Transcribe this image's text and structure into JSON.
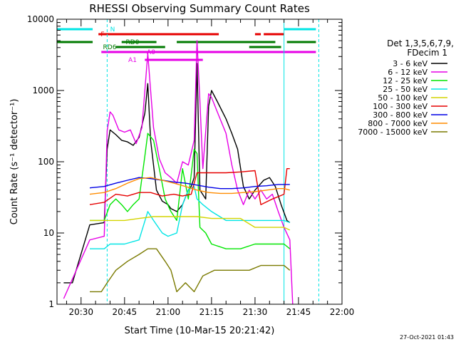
{
  "chart_data": {
    "type": "line",
    "title": "RHESSI Observing Summary Count Rates",
    "xlabel": "Start Time (10-Mar-15 20:21:42)",
    "ylabel": "Count Rate (s⁻¹ detector⁻¹)",
    "y_scale": "log",
    "ylim": [
      1,
      10000
    ],
    "xlim": [
      "20:21:42",
      "22:00:00"
    ],
    "x_ticks": [
      "20:30",
      "20:45",
      "21:00",
      "21:15",
      "21:30",
      "21:45",
      "22:00"
    ],
    "y_ticks": [
      "1",
      "10",
      "100",
      "1000",
      "10000"
    ],
    "footer_date": "27-Oct-2021 01:43",
    "legend": {
      "title_line1": "Det 1,3,5,6,7,9,",
      "title_line2": "FDecim 1",
      "placement": "right"
    },
    "flag_labels": {
      "N": "N",
      "F": "F",
      "RD0": "RD0",
      "RD6": "RD6",
      "A0": "A0",
      "A1": "A1"
    },
    "flag_colors": {
      "N": "#00e5e5",
      "F": "#e60000",
      "RD": "#007a00",
      "A": "#e600e6"
    },
    "flags": {
      "N": [
        [
          "20:21:42",
          "20:34:00"
        ],
        [
          "21:40:00",
          "21:51:00"
        ]
      ],
      "F": [
        [
          "20:36:00",
          "21:17:30"
        ],
        [
          "21:30:00",
          "21:32:00"
        ],
        [
          "21:33:00",
          "21:40:00"
        ]
      ],
      "RD0": [
        [
          "20:21:42",
          "20:34:00"
        ],
        [
          "20:44:00",
          "20:56:00"
        ],
        [
          "21:03:00",
          "21:37:00"
        ],
        [
          "21:41:00",
          "21:51:00"
        ]
      ],
      "RD6": [
        [
          "20:42:00",
          "20:59:00"
        ],
        [
          "21:28:00",
          "21:39:00"
        ]
      ],
      "A0": [
        [
          "20:37:00",
          "21:51:00"
        ]
      ],
      "A1": [
        [
          "20:52:00",
          "21:12:00"
        ]
      ]
    },
    "vlines_solid": [
      "20:21:42",
      "21:40:00"
    ],
    "vlines_dashed": [
      "20:39:00",
      "21:52:00"
    ],
    "series": [
      {
        "name": "3 - 6 keV",
        "color": "#000000",
        "points": [
          [
            "20:24:00",
            2
          ],
          [
            "20:27:00",
            2
          ],
          [
            "20:33:00",
            13
          ],
          [
            "20:38:00",
            14
          ],
          [
            "20:39:00",
            150
          ],
          [
            "20:40:00",
            280
          ],
          [
            "20:42:00",
            240
          ],
          [
            "20:44:00",
            200
          ],
          [
            "20:46:00",
            190
          ],
          [
            "20:48:00",
            170
          ],
          [
            "20:50:00",
            220
          ],
          [
            "20:52:00",
            480
          ],
          [
            "20:53:00",
            1250
          ],
          [
            "20:54:00",
            200
          ],
          [
            "20:56:00",
            40
          ],
          [
            "20:58:00",
            28
          ],
          [
            "21:00:00",
            25
          ],
          [
            "21:01:00",
            22
          ],
          [
            "21:03:00",
            20
          ],
          [
            "21:05:00",
            25
          ],
          [
            "21:07:00",
            40
          ],
          [
            "21:08:00",
            45
          ],
          [
            "21:09:00",
            60
          ],
          [
            "21:10:00",
            2400
          ],
          [
            "21:11:00",
            40
          ],
          [
            "21:13:00",
            30
          ],
          [
            "21:14:00",
            600
          ],
          [
            "21:15:00",
            1000
          ],
          [
            "21:17:00",
            700
          ],
          [
            "21:20:00",
            400
          ],
          [
            "21:22:00",
            250
          ],
          [
            "21:24:00",
            150
          ],
          [
            "21:26:00",
            45
          ],
          [
            "21:28:00",
            30
          ],
          [
            "21:30:00",
            40
          ],
          [
            "21:33:00",
            55
          ],
          [
            "21:35:00",
            60
          ],
          [
            "21:37:00",
            45
          ],
          [
            "21:39:00",
            25
          ],
          [
            "21:41:00",
            15
          ],
          [
            "21:42:00",
            14
          ]
        ]
      },
      {
        "name": "6 - 12 keV",
        "color": "#e600e6",
        "points": [
          [
            "20:24:00",
            1.2
          ],
          [
            "20:33:00",
            8
          ],
          [
            "20:38:00",
            9
          ],
          [
            "20:39:00",
            270
          ],
          [
            "20:40:00",
            500
          ],
          [
            "20:41:00",
            450
          ],
          [
            "20:43:00",
            280
          ],
          [
            "20:45:00",
            260
          ],
          [
            "20:47:00",
            280
          ],
          [
            "20:49:00",
            180
          ],
          [
            "20:51:00",
            300
          ],
          [
            "20:52:00",
            1000
          ],
          [
            "20:53:00",
            3300
          ],
          [
            "20:54:00",
            1000
          ],
          [
            "20:55:00",
            300
          ],
          [
            "20:57:00",
            110
          ],
          [
            "20:59:00",
            70
          ],
          [
            "21:01:00",
            60
          ],
          [
            "21:03:00",
            50
          ],
          [
            "21:05:00",
            100
          ],
          [
            "21:07:00",
            90
          ],
          [
            "21:09:00",
            200
          ],
          [
            "21:10:00",
            5000
          ],
          [
            "21:11:00",
            700
          ],
          [
            "21:12:00",
            80
          ],
          [
            "21:14:00",
            900
          ],
          [
            "21:15:00",
            800
          ],
          [
            "21:17:00",
            500
          ],
          [
            "21:20:00",
            250
          ],
          [
            "21:22:00",
            90
          ],
          [
            "21:24:00",
            40
          ],
          [
            "21:26:00",
            25
          ],
          [
            "21:28:00",
            40
          ],
          [
            "21:30:00",
            30
          ],
          [
            "21:32:00",
            40
          ],
          [
            "21:34:00",
            30
          ],
          [
            "21:36:00",
            35
          ],
          [
            "21:38:00",
            20
          ],
          [
            "21:40:00",
            12
          ],
          [
            "21:42:00",
            8
          ],
          [
            "21:43:00",
            1
          ]
        ]
      },
      {
        "name": "12 - 25 keV",
        "color": "#00e600",
        "points": [
          [
            "20:33:00",
            15
          ],
          [
            "20:38:00",
            15
          ],
          [
            "20:40:00",
            25
          ],
          [
            "20:42:00",
            30
          ],
          [
            "20:44:00",
            25
          ],
          [
            "20:46:00",
            20
          ],
          [
            "20:48:00",
            25
          ],
          [
            "20:50:00",
            30
          ],
          [
            "20:52:00",
            120
          ],
          [
            "20:53:00",
            250
          ],
          [
            "20:55:00",
            200
          ],
          [
            "20:57:00",
            80
          ],
          [
            "20:59:00",
            30
          ],
          [
            "21:01:00",
            20
          ],
          [
            "21:03:00",
            15
          ],
          [
            "21:05:00",
            80
          ],
          [
            "21:07:00",
            30
          ],
          [
            "21:09:00",
            150
          ],
          [
            "21:10:00",
            130
          ],
          [
            "21:11:00",
            12
          ],
          [
            "21:13:00",
            10
          ],
          [
            "21:15:00",
            7
          ],
          [
            "21:20:00",
            6
          ],
          [
            "21:25:00",
            6
          ],
          [
            "21:30:00",
            7
          ],
          [
            "21:35:00",
            7
          ],
          [
            "21:40:00",
            7
          ],
          [
            "21:42:00",
            6
          ]
        ]
      },
      {
        "name": "25 - 50 keV",
        "color": "#00e5e5",
        "points": [
          [
            "20:33:00",
            6
          ],
          [
            "20:38:00",
            6
          ],
          [
            "20:40:00",
            7
          ],
          [
            "20:45:00",
            7
          ],
          [
            "20:50:00",
            8
          ],
          [
            "20:53:00",
            20
          ],
          [
            "20:55:00",
            15
          ],
          [
            "20:58:00",
            10
          ],
          [
            "21:00:00",
            9
          ],
          [
            "21:03:00",
            10
          ],
          [
            "21:05:00",
            25
          ],
          [
            "21:07:00",
            40
          ],
          [
            "21:09:00",
            45
          ],
          [
            "21:10:00",
            30
          ],
          [
            "21:12:00",
            25
          ],
          [
            "21:15:00",
            20
          ],
          [
            "21:20:00",
            15
          ],
          [
            "21:25:00",
            15
          ],
          [
            "21:30:00",
            15
          ],
          [
            "21:35:00",
            15
          ],
          [
            "21:40:00",
            15
          ],
          [
            "21:42:00",
            14
          ]
        ]
      },
      {
        "name": "50 - 100 keV",
        "color": "#d4d400",
        "points": [
          [
            "20:33:00",
            15
          ],
          [
            "20:38:00",
            15
          ],
          [
            "20:45:00",
            15
          ],
          [
            "20:50:00",
            16
          ],
          [
            "20:55:00",
            17
          ],
          [
            "21:00:00",
            17
          ],
          [
            "21:05:00",
            17
          ],
          [
            "21:10:00",
            17
          ],
          [
            "21:15:00",
            16
          ],
          [
            "21:20:00",
            16
          ],
          [
            "21:25:00",
            16
          ],
          [
            "21:30:00",
            12
          ],
          [
            "21:35:00",
            12
          ],
          [
            "21:40:00",
            12
          ],
          [
            "21:42:00",
            11
          ]
        ]
      },
      {
        "name": "100 - 300 keV",
        "color": "#e60000",
        "points": [
          [
            "20:33:00",
            25
          ],
          [
            "20:38:00",
            27
          ],
          [
            "20:42:00",
            35
          ],
          [
            "20:46:00",
            33
          ],
          [
            "20:50:00",
            37
          ],
          [
            "20:54:00",
            37
          ],
          [
            "20:58:00",
            33
          ],
          [
            "21:02:00",
            35
          ],
          [
            "21:05:00",
            33
          ],
          [
            "21:08:00",
            35
          ],
          [
            "21:10:00",
            70
          ],
          [
            "21:15:00",
            70
          ],
          [
            "21:20:00",
            70
          ],
          [
            "21:25:00",
            72
          ],
          [
            "21:30:00",
            75
          ],
          [
            "21:32:00",
            25
          ],
          [
            "21:36:00",
            30
          ],
          [
            "21:40:00",
            35
          ],
          [
            "21:41:00",
            80
          ],
          [
            "21:42:00",
            80
          ]
        ]
      },
      {
        "name": "300 - 800 keV",
        "color": "#0000e6",
        "points": [
          [
            "20:33:00",
            43
          ],
          [
            "20:38:00",
            45
          ],
          [
            "20:42:00",
            50
          ],
          [
            "20:46:00",
            55
          ],
          [
            "20:50:00",
            60
          ],
          [
            "20:54:00",
            58
          ],
          [
            "20:58:00",
            55
          ],
          [
            "21:02:00",
            52
          ],
          [
            "21:06:00",
            50
          ],
          [
            "21:10:00",
            47
          ],
          [
            "21:14:00",
            44
          ],
          [
            "21:18:00",
            42
          ],
          [
            "21:22:00",
            42
          ],
          [
            "21:26:00",
            43
          ],
          [
            "21:30:00",
            45
          ],
          [
            "21:34:00",
            46
          ],
          [
            "21:38:00",
            48
          ],
          [
            "21:40:00",
            48
          ],
          [
            "21:42:00",
            48
          ]
        ]
      },
      {
        "name": "800 - 7000 keV",
        "color": "#ff8c00",
        "points": [
          [
            "20:33:00",
            35
          ],
          [
            "20:38:00",
            37
          ],
          [
            "20:42:00",
            42
          ],
          [
            "20:46:00",
            50
          ],
          [
            "20:50:00",
            58
          ],
          [
            "20:54:00",
            60
          ],
          [
            "20:58:00",
            55
          ],
          [
            "21:02:00",
            50
          ],
          [
            "21:06:00",
            45
          ],
          [
            "21:10:00",
            40
          ],
          [
            "21:14:00",
            37
          ],
          [
            "21:18:00",
            36
          ],
          [
            "21:22:00",
            36
          ],
          [
            "21:26:00",
            37
          ],
          [
            "21:30:00",
            38
          ],
          [
            "21:34:00",
            40
          ],
          [
            "21:38:00",
            42
          ],
          [
            "21:40:00",
            42
          ],
          [
            "21:42:00",
            40
          ]
        ]
      },
      {
        "name": "7000 - 15000 keV",
        "color": "#7a7a00",
        "points": [
          [
            "20:33:00",
            1.5
          ],
          [
            "20:37:00",
            1.5
          ],
          [
            "20:39:00",
            2
          ],
          [
            "20:42:00",
            3
          ],
          [
            "20:46:00",
            4
          ],
          [
            "20:50:00",
            5
          ],
          [
            "20:53:00",
            6
          ],
          [
            "20:56:00",
            6
          ],
          [
            "20:59:00",
            4
          ],
          [
            "21:01:00",
            3
          ],
          [
            "21:03:00",
            1.5
          ],
          [
            "21:06:00",
            2
          ],
          [
            "21:09:00",
            1.5
          ],
          [
            "21:12:00",
            2.5
          ],
          [
            "21:16:00",
            3
          ],
          [
            "21:20:00",
            3
          ],
          [
            "21:24:00",
            3
          ],
          [
            "21:28:00",
            3
          ],
          [
            "21:32:00",
            3.5
          ],
          [
            "21:36:00",
            3.5
          ],
          [
            "21:40:00",
            3.5
          ],
          [
            "21:42:00",
            3
          ]
        ]
      }
    ]
  }
}
